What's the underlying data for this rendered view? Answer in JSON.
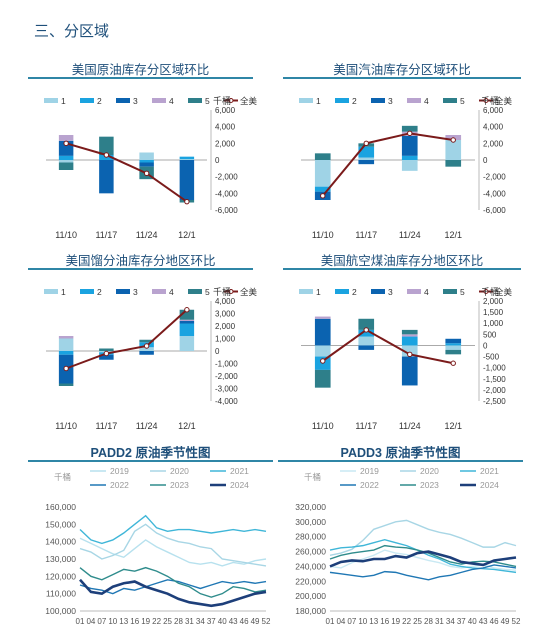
{
  "section_title": "三、分区域",
  "colors": {
    "c1": "#9fd3e6",
    "c2": "#1aa3e0",
    "c3": "#0b63b0",
    "c4": "#b9a3cf",
    "c5": "#2e7f8a",
    "total": "#7b1b1b",
    "rule": "#2f86a6",
    "title": "#1e4f7a"
  },
  "chart_data": [
    {
      "type": "bar",
      "title": "美国原油库存分区域环比",
      "unit": "千桶",
      "categories": [
        "11/10",
        "11/17",
        "11/24",
        "12/1"
      ],
      "legend": [
        "1",
        "2",
        "3",
        "4",
        "5",
        "全美"
      ],
      "yticks": [
        "6,000",
        "4,000",
        "2,000",
        "0",
        "-2,000",
        "-4,000",
        "-6,000"
      ],
      "ylim": [
        -6000,
        6000
      ],
      "series": [
        {
          "name": "1",
          "values": [
            -300,
            0,
            900,
            100
          ]
        },
        {
          "name": "2",
          "values": [
            500,
            600,
            -300,
            300
          ]
        },
        {
          "name": "3",
          "values": [
            1800,
            -4000,
            -500,
            -4800
          ]
        },
        {
          "name": "4",
          "values": [
            700,
            0,
            0,
            0
          ]
        },
        {
          "name": "5",
          "values": [
            -900,
            2200,
            -1500,
            -300
          ]
        },
        {
          "name": "全美",
          "values": [
            2000,
            600,
            -1600,
            -5000
          ]
        }
      ]
    },
    {
      "type": "bar",
      "title": "美国汽油库存分区域环比",
      "unit": "千桶",
      "categories": [
        "11/10",
        "11/17",
        "11/24",
        "12/1"
      ],
      "legend": [
        "1",
        "2",
        "3",
        "4",
        "5",
        "全美"
      ],
      "yticks": [
        "6,000",
        "4,000",
        "2,000",
        "0",
        "-2,000",
        "-4,000",
        "-6,000"
      ],
      "ylim": [
        -6000,
        6000
      ],
      "series": [
        {
          "name": "1",
          "values": [
            -3200,
            300,
            -1300,
            2400
          ]
        },
        {
          "name": "2",
          "values": [
            -600,
            1300,
            500,
            0
          ]
        },
        {
          "name": "3",
          "values": [
            -1000,
            -500,
            2400,
            0
          ]
        },
        {
          "name": "4",
          "values": [
            0,
            0,
            500,
            600
          ]
        },
        {
          "name": "5",
          "values": [
            800,
            400,
            700,
            -800
          ]
        },
        {
          "name": "全美",
          "values": [
            -4300,
            2000,
            3200,
            2400
          ]
        }
      ]
    },
    {
      "type": "bar",
      "title": "美国馏分油库存分地区环比",
      "unit": "千桶",
      "categories": [
        "11/10",
        "11/17",
        "11/24",
        "12/1"
      ],
      "legend": [
        "1",
        "2",
        "3",
        "4",
        "5",
        "全美"
      ],
      "yticks": [
        "4,000",
        "3,000",
        "2,000",
        "1,000",
        "0",
        "-1,000",
        "-2,000",
        "-3,000",
        "-4,000"
      ],
      "ylim": [
        -4000,
        4000
      ],
      "series": [
        {
          "name": "1",
          "values": [
            1000,
            -100,
            300,
            1200
          ]
        },
        {
          "name": "2",
          "values": [
            -300,
            -200,
            400,
            1000
          ]
        },
        {
          "name": "3",
          "values": [
            -2300,
            -400,
            -300,
            200
          ]
        },
        {
          "name": "4",
          "values": [
            200,
            0,
            0,
            100
          ]
        },
        {
          "name": "5",
          "values": [
            -200,
            200,
            200,
            800
          ]
        },
        {
          "name": "全美",
          "values": [
            -1400,
            -200,
            400,
            3300
          ]
        }
      ]
    },
    {
      "type": "bar",
      "title": "美国航空煤油库存分地区环比",
      "unit": "千桶",
      "categories": [
        "11/10",
        "11/17",
        "11/24",
        "12/1"
      ],
      "legend": [
        "1",
        "2",
        "3",
        "4",
        "5",
        "全美"
      ],
      "yticks": [
        "2,000",
        "1,500",
        "1,000",
        "500",
        "0",
        "-500",
        "-1,000",
        "-1,500",
        "-2,000",
        "-2,500"
      ],
      "ylim": [
        -2500,
        2000
      ],
      "series": [
        {
          "name": "1",
          "values": [
            -500,
            400,
            -500,
            -200
          ]
        },
        {
          "name": "2",
          "values": [
            -600,
            300,
            400,
            100
          ]
        },
        {
          "name": "3",
          "values": [
            1200,
            -200,
            -1300,
            200
          ]
        },
        {
          "name": "4",
          "values": [
            100,
            0,
            100,
            0
          ]
        },
        {
          "name": "5",
          "values": [
            -800,
            500,
            200,
            -200
          ]
        },
        {
          "name": "全美",
          "values": [
            -700,
            700,
            -400,
            -800
          ]
        }
      ]
    },
    {
      "type": "line",
      "title": "PADD2 原油季节性图",
      "unit": "千桶",
      "yticks": [
        "160,000",
        "150,000",
        "140,000",
        "130,000",
        "120,000",
        "110,000",
        "100,000"
      ],
      "ylim": [
        100000,
        160000
      ],
      "xticks": [
        "01",
        "04",
        "07",
        "10",
        "13",
        "16",
        "19",
        "22",
        "25",
        "28",
        "31",
        "34",
        "37",
        "40",
        "43",
        "46",
        "49",
        "52"
      ],
      "legend": [
        "2019",
        "2020",
        "2021",
        "2022",
        "2023",
        "2024"
      ],
      "series": [
        {
          "name": "2019",
          "color": "#b7e1ee",
          "values": [
            142000,
            139000,
            136000,
            133000,
            131000,
            136000,
            141000,
            137000,
            134000,
            131000,
            128000,
            127000,
            128000,
            126000,
            128000,
            127000,
            129000,
            130000
          ]
        },
        {
          "name": "2020",
          "color": "#a8d6e5",
          "values": [
            136000,
            134000,
            130000,
            132000,
            135000,
            146000,
            150000,
            145000,
            142000,
            140000,
            139000,
            137000,
            136000,
            130000,
            129000,
            128000,
            127000,
            126000
          ]
        },
        {
          "name": "2021",
          "color": "#3fb6d8",
          "values": [
            147000,
            141000,
            139000,
            141000,
            145000,
            150000,
            155000,
            148000,
            146000,
            147000,
            147000,
            146000,
            145000,
            146000,
            147000,
            146000,
            147000,
            146000
          ]
        },
        {
          "name": "2022",
          "color": "#1f77b4",
          "values": [
            115000,
            113000,
            112000,
            110000,
            113000,
            112000,
            114000,
            116000,
            118000,
            117000,
            115000,
            113000,
            115000,
            117000,
            116000,
            117000,
            116000,
            117000
          ]
        },
        {
          "name": "2023",
          "color": "#2f8c8c",
          "values": [
            125000,
            120000,
            118000,
            121000,
            124000,
            123000,
            125000,
            123000,
            120000,
            116000,
            114000,
            110000,
            108000,
            110000,
            114000,
            113000,
            111000,
            112000
          ]
        },
        {
          "name": "2024",
          "color": "#1d3f7a",
          "values": [
            118000,
            111000,
            110000,
            114000,
            116000,
            117000,
            114000,
            112000,
            110000,
            107000,
            105000,
            104000,
            103000,
            104000,
            106000,
            108000,
            110000,
            111000
          ]
        }
      ]
    },
    {
      "type": "line",
      "title": "PADD3 原油季节性图",
      "unit": "千桶",
      "yticks": [
        "320,000",
        "300,000",
        "280,000",
        "260,000",
        "240,000",
        "220,000",
        "200,000",
        "180,000"
      ],
      "ylim": [
        180000,
        320000
      ],
      "xticks": [
        "01",
        "04",
        "07",
        "10",
        "13",
        "16",
        "19",
        "22",
        "25",
        "28",
        "31",
        "34",
        "37",
        "40",
        "43",
        "46",
        "49",
        "52"
      ],
      "legend": [
        "2019",
        "2020",
        "2021",
        "2022",
        "2023",
        "2024"
      ],
      "series": [
        {
          "name": "2019",
          "color": "#c9e9f3",
          "values": [
            240000,
            238000,
            245000,
            250000,
            255000,
            262000,
            258000,
            256000,
            252000,
            248000,
            245000,
            240000,
            238000,
            240000,
            242000,
            238000,
            236000,
            235000
          ]
        },
        {
          "name": "2020",
          "color": "#a8d6e5",
          "values": [
            255000,
            258000,
            263000,
            275000,
            290000,
            295000,
            300000,
            302000,
            296000,
            290000,
            286000,
            283000,
            278000,
            272000,
            266000,
            266000,
            272000,
            268000
          ]
        },
        {
          "name": "2021",
          "color": "#3fb6d8",
          "values": [
            262000,
            265000,
            266000,
            268000,
            272000,
            276000,
            272000,
            268000,
            262000,
            255000,
            250000,
            243000,
            240000,
            238000,
            237000,
            236000,
            234000,
            232000
          ]
        },
        {
          "name": "2022",
          "color": "#1f77b4",
          "values": [
            232000,
            230000,
            228000,
            226000,
            228000,
            233000,
            232000,
            228000,
            225000,
            222000,
            226000,
            228000,
            232000,
            236000,
            238000,
            242000,
            240000,
            238000
          ]
        },
        {
          "name": "2023",
          "color": "#2f8c8c",
          "values": [
            250000,
            255000,
            258000,
            260000,
            262000,
            268000,
            266000,
            265000,
            262000,
            258000,
            252000,
            246000,
            243000,
            246000,
            247000,
            246000,
            243000,
            240000
          ]
        },
        {
          "name": "2024",
          "color": "#1d3f7a",
          "values": [
            240000,
            246000,
            248000,
            247000,
            250000,
            250000,
            254000,
            252000,
            258000,
            260000,
            256000,
            252000,
            246000,
            244000,
            242000,
            248000,
            250000,
            252000
          ]
        }
      ]
    }
  ]
}
